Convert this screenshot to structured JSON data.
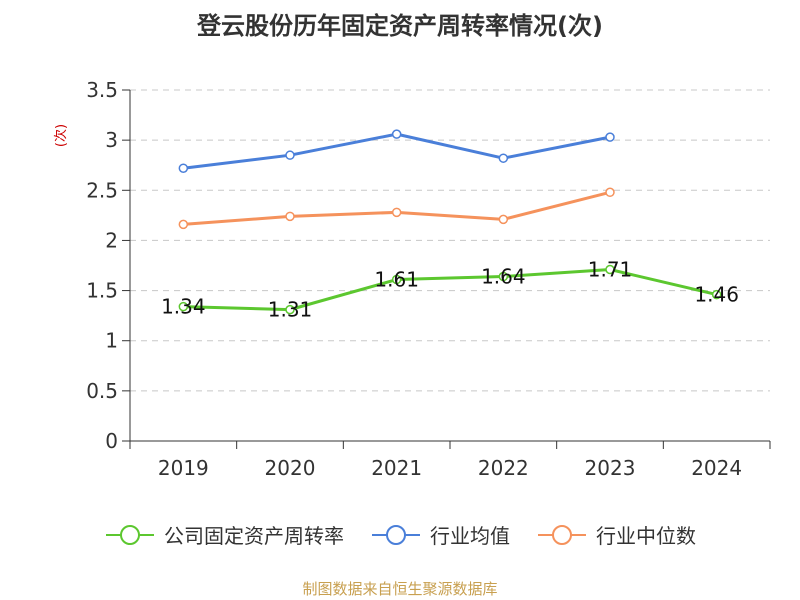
{
  "chart_data": {
    "type": "line",
    "title": "登云股份历年固定资产周转率情况(次)",
    "ylabel": "(次)",
    "xlabel": "",
    "categories": [
      "2019",
      "2020",
      "2021",
      "2022",
      "2023",
      "2024"
    ],
    "ylim": [
      0,
      3.5
    ],
    "yticks": [
      "0",
      "0.5",
      "1",
      "1.5",
      "2",
      "2.5",
      "3",
      "3.5"
    ],
    "grid": true,
    "legend_position": "bottom",
    "series": [
      {
        "name": "公司固定资产周转率",
        "color": "#5cc72f",
        "values": [
          1.34,
          1.31,
          1.61,
          1.64,
          1.71,
          1.46
        ],
        "labels": [
          "1.34",
          "1.31",
          "1.61",
          "1.64",
          "1.71",
          "1.46"
        ]
      },
      {
        "name": "行业均值",
        "color": "#4a7fd9",
        "values": [
          2.72,
          2.85,
          3.06,
          2.82,
          3.03,
          null
        ]
      },
      {
        "name": "行业中位数",
        "color": "#f5925c",
        "values": [
          2.16,
          2.24,
          2.28,
          2.21,
          2.48,
          null
        ]
      }
    ]
  },
  "source": "制图数据来自恒生聚源数据库"
}
